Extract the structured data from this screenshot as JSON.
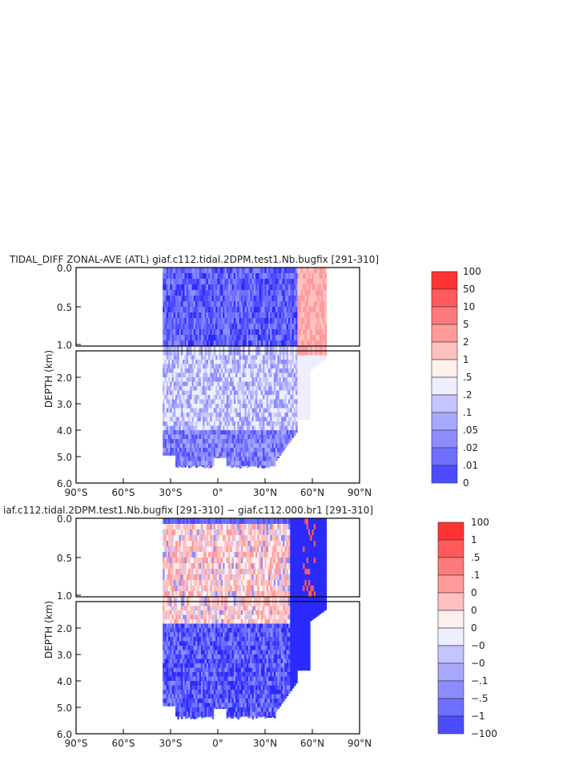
{
  "colors": {
    "pos": [
      "#ff3333",
      "#ff5959",
      "#ff7a7a",
      "#ff9b9b",
      "#ffc0c0",
      "#fff0f0"
    ],
    "neg": [
      "#eeeeff",
      "#c4c4ff",
      "#a8a8ff",
      "#8c8cff",
      "#6e6eff",
      "#4c4cff",
      "#2a2aff"
    ]
  },
  "chart_data": [
    {
      "type": "heatmap",
      "title": "TIDAL_DIFF ZONAL-AVE (ATL) giaf.c112.tidal.2DPM.test1.Nb.bugfix [291-310]",
      "ylabel": "DEPTH (km)",
      "x_ticks": [
        "90°S",
        "60°S",
        "30°S",
        "0°",
        "30°N",
        "60°N",
        "90°N"
      ],
      "y_ticks_upper": [
        "0.0",
        "0.5",
        "1.0"
      ],
      "y_ticks_lower": [
        "2.0",
        "3.0",
        "4.0",
        "5.0",
        "6.0"
      ],
      "xlim": [
        -90,
        90
      ],
      "ylim": [
        6.0,
        0.0
      ],
      "colorbar_labels": [
        "100",
        "50",
        "10",
        "5",
        "2",
        "1",
        ".5",
        ".2",
        ".1",
        ".05",
        ".02",
        ".01",
        "0"
      ]
    },
    {
      "type": "heatmap",
      "title": "iaf.c112.tidal.2DPM.test1.Nb.bugfix [291-310] − giaf.c112.000.br1 [291-310]",
      "ylabel": "DEPTH (km)",
      "x_ticks": [
        "90°S",
        "60°S",
        "30°S",
        "0°",
        "30°N",
        "60°N",
        "90°N"
      ],
      "y_ticks_upper": [
        "0.0",
        "0.5",
        "1.0"
      ],
      "y_ticks_lower": [
        "2.0",
        "3.0",
        "4.0",
        "5.0",
        "6.0"
      ],
      "xlim": [
        -90,
        90
      ],
      "ylim": [
        6.0,
        0.0
      ],
      "colorbar_labels": [
        "100",
        "1",
        ".5",
        ".1",
        "0",
        "0",
        "0",
        "−0",
        "−0",
        "−.1",
        "−.5",
        "−1",
        "−100"
      ]
    }
  ]
}
